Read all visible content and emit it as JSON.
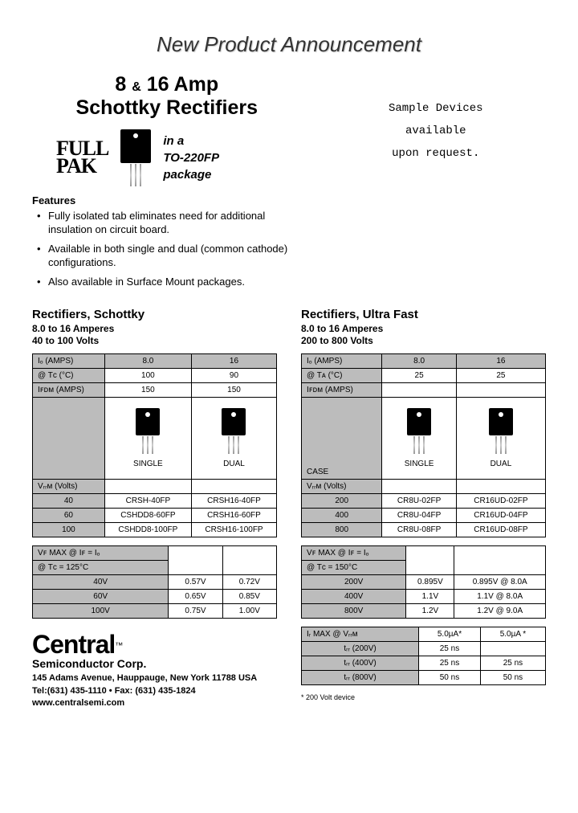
{
  "header": {
    "announce": "New Product Announcement",
    "title_line1_a": "8",
    "title_line1_amp": "&",
    "title_line1_b": "16 Amp",
    "title_line2": "Schottky Rectifiers",
    "fullpak_l1": "FULL",
    "fullpak_l2": "PAK",
    "pak_l1": "in a",
    "pak_l2": "TO-220FP",
    "pak_l3": "package",
    "sample_l1": "Sample Devices",
    "sample_l2": "available",
    "sample_l3": "upon request."
  },
  "features": {
    "head": "Features",
    "items": [
      "Fully isolated tab eliminates need for additional insulation on circuit board.",
      "Available in both single and dual (common cathode) configurations.",
      "Also available in Surface Mount packages."
    ]
  },
  "schottky": {
    "title": "Rectifiers, Schottky",
    "sub1": "8.0 to 16 Amperes",
    "sub2": "40 to 100 Volts",
    "t1": {
      "io_label": "Iₒ (AMPS)",
      "io": [
        "8.0",
        "16"
      ],
      "tc_label": "@ Tᴄ (°C)",
      "tc": [
        "100",
        "90"
      ],
      "ifsm_label": "Iꜰᴅᴍ (AMPS)",
      "ifsm": [
        "150",
        "150"
      ],
      "case_single": "SINGLE",
      "case_dual": "DUAL",
      "vrrm_label": "Vᵣᵣᴍ (Volts)",
      "rows": [
        {
          "v": "40",
          "s": "CRSH-40FP",
          "d": "CRSH16-40FP"
        },
        {
          "v": "60",
          "s": "CSHDD8-60FP",
          "d": "CRSH16-60FP"
        },
        {
          "v": "100",
          "s": "CSHDD8-100FP",
          "d": "CRSH16-100FP"
        }
      ]
    },
    "t2": {
      "head1": "Vꜰ MAX @ Iꜰ = Iₒ",
      "head2": "@ Tᴄ = 125°C",
      "rows": [
        {
          "v": "40V",
          "a": "0.57V",
          "b": "0.72V"
        },
        {
          "v": "60V",
          "a": "0.65V",
          "b": "0.85V"
        },
        {
          "v": "100V",
          "a": "0.75V",
          "b": "1.00V"
        }
      ]
    }
  },
  "ultrafast": {
    "title": "Rectifiers, Ultra Fast",
    "sub1": "8.0 to 16 Amperes",
    "sub2": "200 to 800 Volts",
    "t1": {
      "io_label": "Iₒ (AMPS)",
      "io": [
        "8.0",
        "16"
      ],
      "ta_label": "@ Tᴀ (°C)",
      "ta": [
        "25",
        "25"
      ],
      "ifsm_label": "Iꜰᴅᴍ (AMPS)",
      "case_label": "CASE",
      "case_single": "SINGLE",
      "case_dual": "DUAL",
      "vrrm_label": "Vᵣᵣᴍ (Volts)",
      "rows": [
        {
          "v": "200",
          "s": "CR8U-02FP",
          "d": "CR16UD-02FP"
        },
        {
          "v": "400",
          "s": "CR8U-04FP",
          "d": "CR16UD-04FP"
        },
        {
          "v": "800",
          "s": "CR8U-08FP",
          "d": "CR16UD-08FP"
        }
      ]
    },
    "t2": {
      "head1": "Vꜰ MAX @ Iꜰ = Iₒ",
      "head2": "@ Tᴄ = 150°C",
      "rows": [
        {
          "v": "200V",
          "a": "0.895V",
          "b": "0.895V @ 8.0A"
        },
        {
          "v": "400V",
          "a": "1.1V",
          "b": "1.1V @ 8.0A"
        },
        {
          "v": "800V",
          "a": "1.2V",
          "b": "1.2V @ 9.0A"
        }
      ]
    },
    "t3": {
      "ir_label": "Iᵣ MAX @ Vᵣᵣᴍ",
      "ir": [
        "5.0µA*",
        "5.0µA *"
      ],
      "rows": [
        {
          "v": "tᵣᵣ (200V)",
          "a": "25 ns",
          "b": ""
        },
        {
          "v": "tᵣᵣ (400V)",
          "a": "25 ns",
          "b": "25 ns"
        },
        {
          "v": "tᵣᵣ (800V)",
          "a": "50 ns",
          "b": "50 ns"
        }
      ]
    },
    "footnote": "* 200 Volt device"
  },
  "company": {
    "name": "Central",
    "tm": "™",
    "sub": "Semiconductor Corp.",
    "addr": "145 Adams Avenue, Hauppauge, New York  11788  USA",
    "tel": "Tel:(631) 435-1110  •  Fax: (631) 435-1824",
    "web": "www.centralsemi.com"
  }
}
